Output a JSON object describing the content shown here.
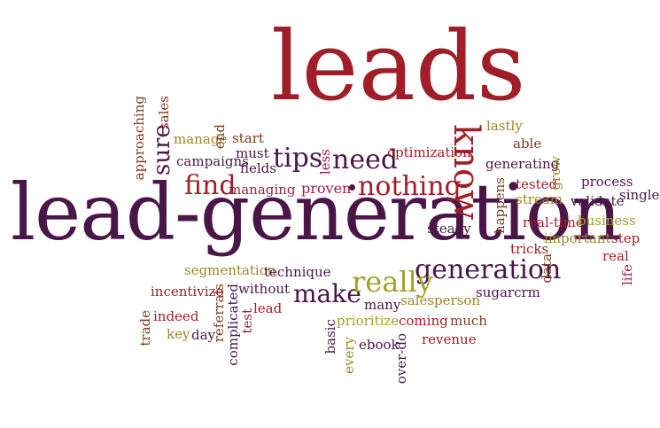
{
  "cloud": {
    "w_leads": {
      "text": "leads",
      "color": "#a01e27"
    },
    "w_lead_generation": {
      "text": "lead-generation",
      "color": "#4a1648"
    },
    "w_know": {
      "text": "know",
      "color": "#a01e27"
    },
    "w_generation": {
      "text": "generation",
      "color": "#4a1648"
    },
    "w_nothing": {
      "text": "nothing",
      "color": "#a01e27"
    },
    "w_find": {
      "text": "find",
      "color": "#a01e27"
    },
    "w_need": {
      "text": "need",
      "color": "#4a1648"
    },
    "w_tips": {
      "text": "tips",
      "color": "#4a1648"
    },
    "w_make": {
      "text": "make",
      "color": "#4a1648"
    },
    "w_really": {
      "text": "really",
      "color": "#a0a12a"
    },
    "w_sure": {
      "text": "sure",
      "color": "#4a1648"
    },
    "w_approaching": {
      "text": "approaching",
      "color": "#7e3c1f"
    },
    "w_sales": {
      "text": "sales",
      "color": "#7e3c1f"
    },
    "w_manage": {
      "text": "manage",
      "color": "#a0862a"
    },
    "w_campaigns": {
      "text": "campaigns",
      "color": "#4a1648"
    },
    "w_end": {
      "text": "end",
      "color": "#7e3c1f"
    },
    "w_start": {
      "text": "start",
      "color": "#7e3c1f"
    },
    "w_must": {
      "text": "must",
      "color": "#4a1648"
    },
    "w_fields": {
      "text": "fields",
      "color": "#4a1648"
    },
    "w_managing": {
      "text": "managing",
      "color": "#a01e4a"
    },
    "w_less": {
      "text": "less",
      "color": "#a01e4a"
    },
    "w_proven": {
      "text": "proven",
      "color": "#a01e4a"
    },
    "w_optimization": {
      "text": "optimization",
      "color": "#a01e27"
    },
    "w_lastly": {
      "text": "lastly",
      "color": "#a0862a"
    },
    "w_able": {
      "text": "able",
      "color": "#7e3c1f"
    },
    "w_generating": {
      "text": "generating",
      "color": "#4a1648"
    },
    "w_grow": {
      "text": "grow",
      "color": "#a0862a"
    },
    "w_tested": {
      "text": "tested",
      "color": "#a01e27"
    },
    "w_stream": {
      "text": "stream",
      "color": "#a0862a"
    },
    "w_happens": {
      "text": "happens",
      "color": "#7e3c1f"
    },
    "w_process": {
      "text": "process",
      "color": "#4a1648"
    },
    "w_validate": {
      "text": "validate",
      "color": "#4a1648"
    },
    "w_single": {
      "text": "single",
      "color": "#4a1648"
    },
    "w_real_time": {
      "text": "real-time",
      "color": "#a01e27"
    },
    "w_business": {
      "text": "business",
      "color": "#a0a12a"
    },
    "w_steady": {
      "text": "steady",
      "color": "#4a1648"
    },
    "w_important": {
      "text": "important",
      "color": "#a0862a"
    },
    "w_step": {
      "text": "step",
      "color": "#a01e27"
    },
    "w_tricks": {
      "text": "tricks",
      "color": "#a01e27"
    },
    "w_real": {
      "text": "real",
      "color": "#a01e27"
    },
    "w_data": {
      "text": "data",
      "color": "#7e3c1f"
    },
    "w_life": {
      "text": "life",
      "color": "#a01e4a"
    },
    "w_segmentation": {
      "text": "segmentation",
      "color": "#a0862a"
    },
    "w_technique": {
      "text": "technique",
      "color": "#4a1648"
    },
    "w_incentivize": {
      "text": "incentivize",
      "color": "#a01e27"
    },
    "w_without": {
      "text": "without",
      "color": "#4a1648"
    },
    "w_sugarcrm": {
      "text": "sugarcrm",
      "color": "#4a1648"
    },
    "w_salesperson": {
      "text": "salesperson",
      "color": "#a0862a"
    },
    "w_many": {
      "text": "many",
      "color": "#4a1648"
    },
    "w_prioritize": {
      "text": "prioritize",
      "color": "#a0a12a"
    },
    "w_coming": {
      "text": "coming",
      "color": "#a01e27"
    },
    "w_much": {
      "text": "much",
      "color": "#7e3c1f"
    },
    "w_basic": {
      "text": "basic",
      "color": "#4a1648"
    },
    "w_ebook": {
      "text": "ebook",
      "color": "#4a1648"
    },
    "w_revenue": {
      "text": "revenue",
      "color": "#a01e27"
    },
    "w_every": {
      "text": "every",
      "color": "#a0862a"
    },
    "w_over_do": {
      "text": "over-do",
      "color": "#4a1648"
    },
    "w_trade": {
      "text": "trade",
      "color": "#7e3c1f"
    },
    "w_indeed": {
      "text": "indeed",
      "color": "#a01e27"
    },
    "w_key": {
      "text": "key",
      "color": "#a0862a"
    },
    "w_day": {
      "text": "day",
      "color": "#4a1648"
    },
    "w_referrals": {
      "text": "referrals",
      "color": "#7e3c1f"
    },
    "w_complicated": {
      "text": "complicated",
      "color": "#4a1648"
    },
    "w_test": {
      "text": "test",
      "color": "#a01e4a"
    },
    "w_lead": {
      "text": "lead",
      "color": "#a01e27"
    }
  }
}
